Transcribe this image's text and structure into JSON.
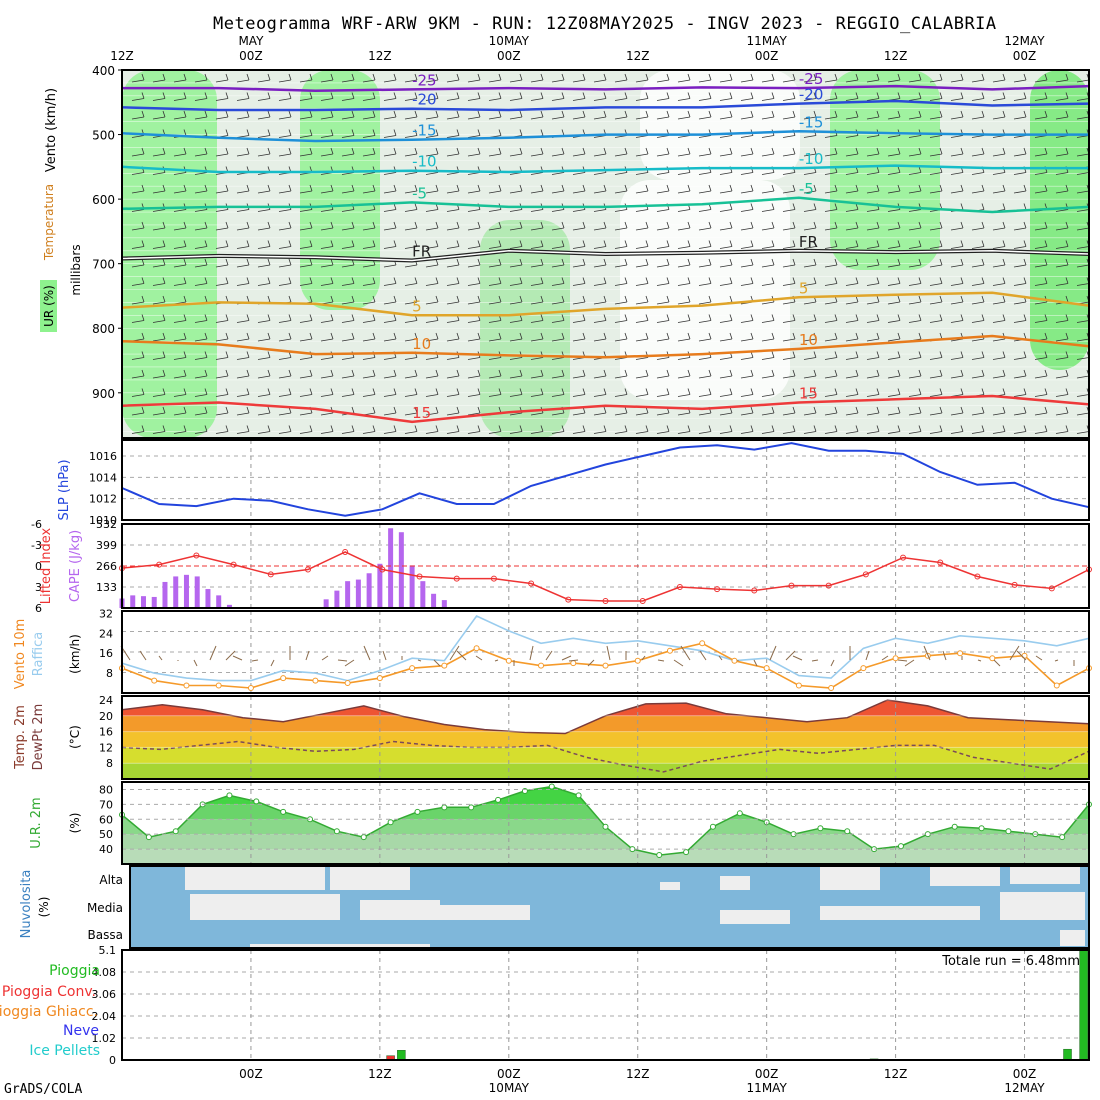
{
  "title": "Meteogramma WRF-ARW 9KM - RUN: 12Z08MAY2025 - INGV 2023 - REGGIO_CALABRIA",
  "credit": "GrADS/COLA",
  "colors": {
    "bg": "#ffffff",
    "grid": "#aaaaaa",
    "sky": "#7fb7da",
    "cloud": "#eeeeee",
    "rh_green": "#4cd94c"
  },
  "chart_data": [
    {
      "name": "upper-air",
      "type": "heatmap",
      "ylabels": [
        "Vento (km/h)",
        "Temperatura",
        "UR (%)",
        "millibars"
      ],
      "y_ticks": [
        "400",
        "500",
        "600",
        "700",
        "800",
        "900"
      ],
      "top_time_labels": [
        {
          "hour": 0,
          "text": "12Z"
        },
        {
          "hour": 12,
          "text": "MAY"
        },
        {
          "hour": 12,
          "text": "00Z"
        },
        {
          "hour": 24,
          "text": "12Z"
        },
        {
          "hour": 36,
          "text": "10MAY"
        },
        {
          "hour": 36,
          "text": "00Z"
        },
        {
          "hour": 48,
          "text": "12Z"
        },
        {
          "hour": 60,
          "text": "11MAY"
        },
        {
          "hour": 60,
          "text": "00Z"
        },
        {
          "hour": 72,
          "text": "12Z"
        },
        {
          "hour": 84,
          "text": "12MAY"
        },
        {
          "hour": 84,
          "text": "00Z"
        }
      ],
      "isotherm_labels": [
        "-25",
        "-20",
        "-15",
        "-10",
        "-5",
        "FR",
        "5",
        "10",
        "15"
      ],
      "isotherms": [
        {
          "label": "-25",
          "color": "#7a1fc0",
          "p": [
            428,
            428,
            432,
            430,
            428,
            430,
            427,
            428,
            425,
            430,
            425
          ]
        },
        {
          "label": "-20",
          "color": "#2a4ad8",
          "p": [
            458,
            462,
            462,
            460,
            462,
            458,
            458,
            452,
            448,
            455,
            452
          ]
        },
        {
          "label": "-15",
          "color": "#1e90d8",
          "p": [
            498,
            505,
            510,
            508,
            505,
            500,
            500,
            495,
            498,
            500,
            500
          ]
        },
        {
          "label": "-10",
          "color": "#16bcc8",
          "p": [
            550,
            558,
            558,
            556,
            558,
            555,
            552,
            552,
            548,
            552,
            552
          ]
        },
        {
          "label": "-5",
          "color": "#17c196",
          "p": [
            615,
            612,
            612,
            605,
            612,
            612,
            608,
            598,
            612,
            620,
            612
          ]
        },
        {
          "label": "FR",
          "color": "#222222",
          "p": [
            692,
            688,
            690,
            695,
            680,
            685,
            683,
            680,
            682,
            680,
            685
          ]
        },
        {
          "label": "5",
          "color": "#e0a52a",
          "p": [
            768,
            760,
            762,
            780,
            780,
            770,
            765,
            752,
            748,
            745,
            765
          ]
        },
        {
          "label": "10",
          "color": "#e77b1c",
          "p": [
            820,
            825,
            840,
            838,
            842,
            845,
            840,
            832,
            822,
            812,
            828
          ]
        },
        {
          "label": "15",
          "color": "#ee3a3a",
          "p": [
            920,
            915,
            925,
            945,
            930,
            920,
            925,
            915,
            910,
            905,
            918
          ]
        }
      ]
    },
    {
      "name": "slp",
      "type": "line",
      "ylabel": "SLP (hPa)",
      "y_ticks": [
        "1016",
        "1014",
        "1012",
        "1010"
      ],
      "ylim": [
        1010,
        1017.5
      ],
      "series": [
        {
          "color": "#2244dd",
          "values": [
            1013,
            1011.5,
            1011.3,
            1012,
            1011.8,
            1011,
            1010.4,
            1011,
            1012.5,
            1011.5,
            1011.5,
            1013.2,
            1014.2,
            1015.2,
            1016,
            1016.8,
            1017,
            1016.6,
            1017.2,
            1016.5,
            1016.5,
            1016.2,
            1014.5,
            1013.3,
            1013.5,
            1012,
            1011.2
          ]
        }
      ]
    },
    {
      "name": "cape-li",
      "type": "bar",
      "ylabel_left": "Lifted Index",
      "ylabel_right": "CAPE (J/kg)",
      "li_ticks": [
        "-6",
        "-3",
        "0",
        "3",
        "6"
      ],
      "cape_ticks": [
        "532",
        "399",
        "266",
        "133"
      ],
      "cape_lim": [
        0,
        532
      ],
      "li_lim": [
        -6,
        6
      ],
      "cape_values": [
        {
          "h": 0,
          "v": 60
        },
        {
          "h": 1,
          "v": 80
        },
        {
          "h": 2,
          "v": 75
        },
        {
          "h": 3,
          "v": 70
        },
        {
          "h": 4,
          "v": 165
        },
        {
          "h": 5,
          "v": 200
        },
        {
          "h": 6,
          "v": 210
        },
        {
          "h": 7,
          "v": 200
        },
        {
          "h": 8,
          "v": 120
        },
        {
          "h": 9,
          "v": 80
        },
        {
          "h": 10,
          "v": 20
        },
        {
          "h": 19,
          "v": 55
        },
        {
          "h": 20,
          "v": 110
        },
        {
          "h": 21,
          "v": 170
        },
        {
          "h": 22,
          "v": 180
        },
        {
          "h": 23,
          "v": 220
        },
        {
          "h": 24,
          "v": 280
        },
        {
          "h": 25,
          "v": 505
        },
        {
          "h": 26,
          "v": 480
        },
        {
          "h": 27,
          "v": 270
        },
        {
          "h": 28,
          "v": 170
        },
        {
          "h": 29,
          "v": 90
        },
        {
          "h": 30,
          "v": 50
        }
      ],
      "li_values": [
        0.3,
        -0.2,
        -1.5,
        -0.2,
        1.2,
        0.5,
        -2,
        0.5,
        1.5,
        1.8,
        1.8,
        2.5,
        4.8,
        5,
        5,
        3,
        3.3,
        3.5,
        2.8,
        2.8,
        1.2,
        -1.2,
        -0.5,
        1.5,
        2.7,
        3.2,
        0.5
      ]
    },
    {
      "name": "wind10m",
      "type": "line",
      "ylabel_left": "Vento 10m",
      "ylabel_left2": "Raffica",
      "ylabel": "(km/h)",
      "y_ticks": [
        "32",
        "24",
        "16",
        "8"
      ],
      "ylim": [
        0,
        33
      ],
      "series": [
        {
          "name": "Raffica",
          "color": "#99ccee",
          "values": [
            12,
            8,
            6,
            5,
            5,
            9,
            8,
            5,
            9,
            14,
            13,
            31,
            25,
            20,
            22,
            20,
            21,
            19,
            17,
            13,
            14,
            7,
            6,
            18,
            22,
            20,
            23,
            22,
            21,
            19,
            22
          ]
        },
        {
          "name": "Vento 10m",
          "color": "#f59a2a",
          "values": [
            10,
            5,
            3,
            3,
            2,
            6,
            5,
            4,
            6,
            10,
            11,
            18,
            13,
            11,
            12,
            11,
            13,
            17,
            20,
            13,
            10,
            3,
            2,
            10,
            14,
            15,
            16,
            14,
            15,
            3,
            10
          ]
        }
      ]
    },
    {
      "name": "temp2m",
      "type": "area",
      "ylabel_left": "Temp. 2m",
      "ylabel_left2": "DewPt 2m",
      "ylabel": "(°C)",
      "y_ticks": [
        "24",
        "20",
        "16",
        "12",
        "8"
      ],
      "ylim": [
        4,
        25
      ],
      "series": [
        {
          "name": "Temp. 2m",
          "color": "#cc3333",
          "values": [
            21.5,
            22.8,
            21.5,
            19.5,
            18.5,
            20.5,
            22.5,
            19.8,
            17.8,
            16.5,
            15.8,
            15.5,
            20,
            23,
            23.2,
            20.5,
            19.5,
            18.5,
            19.5,
            24,
            22.5,
            19.5,
            19,
            18.5,
            18
          ]
        },
        {
          "name": "DewPt 2m",
          "color": "#7a4a5a",
          "values": [
            12,
            11.5,
            12.5,
            13.5,
            12,
            11,
            11.5,
            13.5,
            12.5,
            12,
            12,
            12.5,
            9.5,
            7.5,
            5.8,
            8.5,
            10,
            11.5,
            10.5,
            11.5,
            12.5,
            12.5,
            9.5,
            8,
            6.5,
            11
          ]
        }
      ]
    },
    {
      "name": "rh2m",
      "type": "area",
      "ylabel_left": "U.R. 2m",
      "ylabel": "(%)",
      "y_ticks": [
        "80",
        "70",
        "60",
        "50",
        "40"
      ],
      "ylim": [
        30,
        85
      ],
      "series": [
        {
          "name": "U.R. 2m",
          "color": "#33bb33",
          "values": [
            63,
            48,
            52,
            70,
            76,
            72,
            65,
            60,
            52,
            48,
            58,
            65,
            68,
            68,
            73,
            79,
            82,
            76,
            55,
            40,
            36,
            38,
            55,
            64,
            58,
            50,
            54,
            52,
            40,
            42,
            50,
            55,
            54,
            52,
            50,
            48,
            70
          ]
        }
      ]
    },
    {
      "name": "clouds",
      "type": "area",
      "ylabel_left": "Nuvolosita",
      "ylabel": "(%)",
      "levels": [
        "Alta",
        "Media",
        "Bassa"
      ]
    },
    {
      "name": "precip",
      "type": "bar",
      "legend": [
        {
          "text": "Pioggia",
          "color": "#22bb22"
        },
        {
          "text": "Pioggia Conv.",
          "color": "#ee3333"
        },
        {
          "text": "Pioggia Ghiacc.",
          "color": "#f08820"
        },
        {
          "text": "Neve",
          "color": "#3333ee"
        },
        {
          "text": "Ice Pellets",
          "color": "#22cccc"
        }
      ],
      "y_ticks": [
        "5.1",
        "4.08",
        "3.06",
        "2.04",
        "1.02",
        "0"
      ],
      "ylim": [
        0,
        5.1
      ],
      "total_label": "Totale run = 6.48mm",
      "bars": [
        {
          "h": 25,
          "v": 0.2,
          "color": "#ee3333"
        },
        {
          "h": 26,
          "v": 0.45,
          "color": "#22bb22"
        },
        {
          "h": 70,
          "v": 0.05,
          "color": "#22bb22"
        },
        {
          "h": 88,
          "v": 0.5,
          "color": "#22bb22"
        },
        {
          "h": 89.5,
          "v": 5.1,
          "color": "#22bb22"
        }
      ],
      "bottom_time_labels": [
        {
          "hour": 12,
          "text": "00Z"
        },
        {
          "hour": 24,
          "text": "12Z"
        },
        {
          "hour": 36,
          "text": "00Z"
        },
        {
          "hour": 36,
          "text": "10MAY"
        },
        {
          "hour": 48,
          "text": "12Z"
        },
        {
          "hour": 60,
          "text": "00Z"
        },
        {
          "hour": 60,
          "text": "11MAY"
        },
        {
          "hour": 72,
          "text": "12Z"
        },
        {
          "hour": 84,
          "text": "00Z"
        },
        {
          "hour": 84,
          "text": "12MAY"
        }
      ]
    }
  ]
}
